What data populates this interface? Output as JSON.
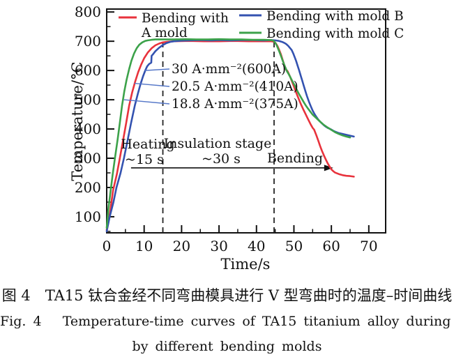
{
  "figure": {
    "caption_zh": "图 4　TA15 钛合金经不同弯曲模具进行 V 型弯曲时的温度–时间曲线",
    "caption_en_line1": "Fig. 4   Temperature-time curves of TA15 titanium alloy during V-bending",
    "caption_en_line2": "by different bending molds"
  },
  "chart_data": {
    "type": "line",
    "title": "",
    "xlabel": "Time/s",
    "ylabel": "Temperature/°C",
    "xlim": [
      0,
      74.5
    ],
    "ylim": [
      45,
      810
    ],
    "x_ticks": [
      0,
      10,
      20,
      30,
      40,
      50,
      60,
      70
    ],
    "y_ticks": [
      100,
      200,
      300,
      400,
      500,
      600,
      700,
      800
    ],
    "x_minor_ticks": [
      5,
      15,
      25,
      35,
      45,
      55,
      65
    ],
    "y_minor_ticks": [
      50,
      150,
      250,
      350,
      450,
      550,
      650,
      750
    ],
    "grid": false,
    "legend_position": "top-inside",
    "axis_color": "#111111",
    "leader_color": "#5577c8",
    "legend": [
      {
        "lines": [
          "Bending with",
          "A mold"
        ]
      },
      {
        "lines": [
          "Bending with mold B"
        ]
      },
      {
        "lines": [
          "Bending with mold C"
        ]
      }
    ],
    "series": [
      {
        "name": "Bending with A mold",
        "color": "#e8323c",
        "points": [
          [
            0,
            55
          ],
          [
            0.5,
            85
          ],
          [
            1,
            125
          ],
          [
            1.7,
            190
          ],
          [
            2.7,
            245
          ],
          [
            3.5,
            300
          ],
          [
            4.4,
            363
          ],
          [
            5.2,
            420
          ],
          [
            6,
            480
          ],
          [
            6.8,
            525
          ],
          [
            7.6,
            562
          ],
          [
            8.4,
            594
          ],
          [
            9.2,
            620
          ],
          [
            10,
            642
          ],
          [
            11,
            662
          ],
          [
            12,
            676
          ],
          [
            13,
            686
          ],
          [
            14,
            692
          ],
          [
            15,
            696
          ],
          [
            16,
            698
          ],
          [
            18,
            700
          ],
          [
            22,
            701
          ],
          [
            26,
            700
          ],
          [
            30,
            700
          ],
          [
            34,
            701
          ],
          [
            38,
            700
          ],
          [
            42,
            700
          ],
          [
            44,
            700
          ],
          [
            44.8,
            698
          ],
          [
            45.2,
            692
          ],
          [
            45.6,
            684
          ],
          [
            46,
            672
          ],
          [
            46.5,
            656
          ],
          [
            47,
            636
          ],
          [
            47.5,
            616
          ],
          [
            47.9,
            603
          ],
          [
            48.3,
            598
          ],
          [
            49,
            578
          ],
          [
            49.5,
            562
          ],
          [
            50,
            545
          ],
          [
            50.5,
            528
          ],
          [
            51,
            512
          ],
          [
            51.5,
            496
          ],
          [
            52,
            481
          ],
          [
            52.5,
            467
          ],
          [
            53,
            454
          ],
          [
            53.5,
            441
          ],
          [
            54,
            428
          ],
          [
            54.5,
            415
          ],
          [
            55,
            404
          ],
          [
            55.4,
            398
          ],
          [
            56,
            378
          ],
          [
            56.5,
            360
          ],
          [
            57,
            342
          ],
          [
            57.5,
            325
          ],
          [
            58,
            310
          ],
          [
            58.5,
            296
          ],
          [
            59,
            283
          ],
          [
            59.5,
            272
          ],
          [
            60,
            262
          ],
          [
            60.5,
            256
          ],
          [
            61,
            251
          ],
          [
            62,
            246
          ],
          [
            63,
            242
          ],
          [
            64,
            240
          ],
          [
            65,
            239
          ],
          [
            66,
            237
          ]
        ]
      },
      {
        "name": "Bending with mold B",
        "color": "#3352b0",
        "points": [
          [
            0,
            50
          ],
          [
            0.8,
            100
          ],
          [
            1.8,
            150
          ],
          [
            2.6,
            200
          ],
          [
            3.7,
            250
          ],
          [
            4.6,
            300
          ],
          [
            5.6,
            363
          ],
          [
            6.5,
            420
          ],
          [
            7.5,
            480
          ],
          [
            8.3,
            520
          ],
          [
            9,
            552
          ],
          [
            9.7,
            580
          ],
          [
            10.3,
            600
          ],
          [
            10.8,
            614
          ],
          [
            11.3,
            622
          ],
          [
            11.9,
            627
          ],
          [
            12,
            650
          ],
          [
            12.4,
            656
          ],
          [
            13,
            666
          ],
          [
            14,
            678
          ],
          [
            15,
            687
          ],
          [
            16,
            694
          ],
          [
            17,
            698
          ],
          [
            18,
            700
          ],
          [
            20,
            702
          ],
          [
            22,
            703
          ],
          [
            25,
            704
          ],
          [
            28,
            703
          ],
          [
            30,
            704
          ],
          [
            33,
            703
          ],
          [
            36,
            704
          ],
          [
            39,
            704
          ],
          [
            42,
            703
          ],
          [
            44,
            704
          ],
          [
            45,
            703
          ],
          [
            46,
            701
          ],
          [
            47,
            697
          ],
          [
            47.5,
            694
          ],
          [
            48,
            690
          ],
          [
            48.5,
            684
          ],
          [
            49,
            676
          ],
          [
            49.4,
            670
          ],
          [
            49.8,
            659
          ],
          [
            50.2,
            646
          ],
          [
            50.6,
            632
          ],
          [
            51,
            616
          ],
          [
            51.4,
            600
          ],
          [
            51.8,
            583
          ],
          [
            52.2,
            566
          ],
          [
            52.6,
            549
          ],
          [
            53,
            532
          ],
          [
            53.5,
            512
          ],
          [
            54,
            494
          ],
          [
            54.5,
            478
          ],
          [
            55,
            463
          ],
          [
            55.5,
            451
          ],
          [
            56,
            441
          ],
          [
            56.5,
            432
          ],
          [
            57,
            425
          ],
          [
            57.5,
            419
          ],
          [
            58,
            413
          ],
          [
            58.5,
            408
          ],
          [
            59,
            404
          ],
          [
            59.5,
            401
          ],
          [
            60,
            398
          ],
          [
            60.5,
            394
          ],
          [
            61,
            391
          ],
          [
            62,
            386
          ],
          [
            63,
            383
          ],
          [
            64,
            380
          ],
          [
            65,
            377
          ],
          [
            66,
            374
          ]
        ]
      },
      {
        "name": "Bending with mold C",
        "color": "#3ca24a",
        "points": [
          [
            0,
            62
          ],
          [
            0.4,
            120
          ],
          [
            1,
            185
          ],
          [
            1.6,
            245
          ],
          [
            2.2,
            300
          ],
          [
            2.9,
            363
          ],
          [
            3.5,
            420
          ],
          [
            4.1,
            480
          ],
          [
            4.7,
            528
          ],
          [
            5.3,
            568
          ],
          [
            6,
            605
          ],
          [
            6.6,
            633
          ],
          [
            7.3,
            658
          ],
          [
            8,
            676
          ],
          [
            8.7,
            688
          ],
          [
            9.5,
            696
          ],
          [
            10.3,
            701
          ],
          [
            11,
            703
          ],
          [
            12,
            705
          ],
          [
            13,
            706
          ],
          [
            15,
            706
          ],
          [
            18,
            706
          ],
          [
            21,
            707
          ],
          [
            24,
            706
          ],
          [
            27,
            706
          ],
          [
            30,
            707
          ],
          [
            33,
            706
          ],
          [
            36,
            706
          ],
          [
            39,
            705
          ],
          [
            42,
            705
          ],
          [
            44,
            704
          ],
          [
            44.6,
            701
          ],
          [
            45,
            695
          ],
          [
            45.4,
            686
          ],
          [
            45.8,
            674
          ],
          [
            46.2,
            661
          ],
          [
            46.6,
            648
          ],
          [
            47,
            634
          ],
          [
            47.4,
            620
          ],
          [
            47.8,
            608
          ],
          [
            48.2,
            596
          ],
          [
            48.6,
            588
          ],
          [
            49,
            578
          ],
          [
            49.4,
            568
          ],
          [
            49.8,
            558
          ],
          [
            50.3,
            547
          ],
          [
            50.7,
            536
          ],
          [
            51.2,
            523
          ],
          [
            51.7,
            512
          ],
          [
            52.2,
            501
          ],
          [
            52.7,
            490
          ],
          [
            53.2,
            480
          ],
          [
            53.8,
            469
          ],
          [
            54.4,
            459
          ],
          [
            55,
            449
          ],
          [
            56,
            437
          ],
          [
            57,
            425
          ],
          [
            58,
            414
          ],
          [
            59,
            405
          ],
          [
            60,
            397
          ],
          [
            61,
            389
          ],
          [
            62,
            383
          ],
          [
            63,
            378
          ],
          [
            64,
            374
          ],
          [
            65,
            371
          ]
        ]
      }
    ],
    "annotations": [
      {
        "text": "30 A·mm⁻²(600A)",
        "attach": {
          "t": 10.2,
          "temp": 600
        }
      },
      {
        "text": "20.5 A·mm⁻²(410A)",
        "attach": {
          "t": 7.4,
          "temp": 556
        }
      },
      {
        "text": "18.8 A·mm⁻²(375A)",
        "attach": {
          "t": 4.6,
          "temp": 500
        }
      }
    ],
    "stage_markers": {
      "dashed_lines_t": [
        15,
        44.7
      ],
      "dashed_top_temp": 705,
      "stages": [
        {
          "line1": "Heating",
          "line2": "~15 s"
        },
        {
          "line1": "Insulation stage",
          "line2": "~30 s"
        },
        {
          "line1": "Bending"
        }
      ],
      "arrow": {
        "from_t": 6.5,
        "to_t": 60.5,
        "temp": 267
      }
    }
  }
}
